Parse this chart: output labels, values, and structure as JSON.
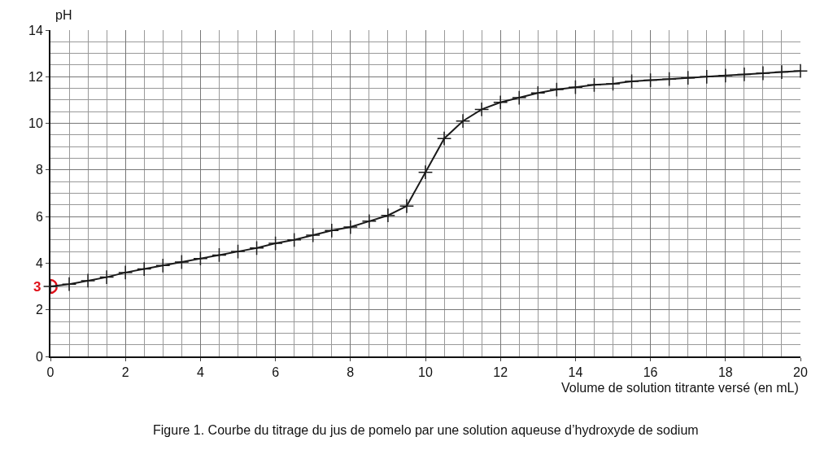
{
  "chart_data": {
    "type": "line",
    "xlabel": "Volume de solution titrante versé (en mL)",
    "ylabel": "pH",
    "annotations": [
      {
        "text": "3",
        "x": 0,
        "y": 3
      },
      "Figure 1. Courbe du titrage du jus de pomelo par une solution aqueuse d’hydroxyde de sodium"
    ],
    "x": [
      0,
      0.5,
      1,
      1.5,
      2,
      2.5,
      3,
      3.5,
      4,
      4.5,
      5,
      5.5,
      6,
      6.5,
      7,
      7.5,
      8,
      8.5,
      9,
      9.5,
      10,
      10.5,
      11,
      11.5,
      12,
      12.5,
      13,
      13.5,
      14,
      14.5,
      15,
      15.5,
      16,
      16.5,
      17,
      17.5,
      18,
      18.5,
      19,
      19.5,
      20
    ],
    "series": [
      {
        "color": "#1a1a1a",
        "values": [
          3.0,
          3.1,
          3.25,
          3.4,
          3.6,
          3.75,
          3.9,
          4.05,
          4.2,
          4.35,
          4.5,
          4.65,
          4.85,
          5.0,
          5.2,
          5.4,
          5.55,
          5.8,
          6.05,
          6.45,
          7.9,
          9.35,
          10.1,
          10.6,
          10.9,
          11.1,
          11.3,
          11.45,
          11.55,
          11.65,
          11.7,
          11.8,
          11.85,
          11.9,
          11.95,
          12.0,
          12.05,
          12.1,
          12.15,
          12.2,
          12.25
        ]
      }
    ],
    "xlim": [
      0,
      20
    ],
    "xticks": [
      0,
      2,
      4,
      6,
      8,
      10,
      12,
      14,
      16,
      18,
      20
    ],
    "ylim": [
      0,
      14
    ],
    "yticks": [
      0,
      2,
      4,
      6,
      8,
      10,
      12,
      14
    ],
    "grid": true,
    "marker": "cross",
    "line_style": "solid"
  }
}
